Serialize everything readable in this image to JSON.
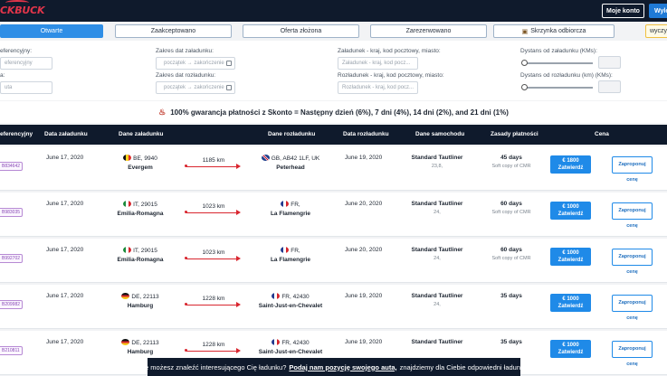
{
  "header": {
    "logo": "CKBUCK",
    "account_label": "Moje konto",
    "logout_label": "Wylo"
  },
  "tabs": [
    {
      "label": "Otwarte",
      "active": true
    },
    {
      "label": "Zaakceptowano",
      "active": false
    },
    {
      "label": "Oferta złożona",
      "active": false
    },
    {
      "label": "Zarezerwowano",
      "active": false
    },
    {
      "label": "Skrzynka odbiorcza",
      "active": false,
      "icon": "inbox-icon"
    },
    {
      "label": "wyczy",
      "active": false
    }
  ],
  "filters": {
    "ref_label": "eferencyjny:",
    "ref_placeholder": "eferencyjny",
    "ref2_label": "a:",
    "ref2_placeholder": "uta",
    "load_dates_label": "Zakres dat załadunku:",
    "load_dates_placeholder": "początek → zakończenie",
    "unload_dates_label": "Zakres dat rozładunku:",
    "unload_dates_placeholder": "początek → zakończenie",
    "load_place_label": "Załadunek - kraj, kod pocztowy, miasto:",
    "load_place_placeholder": "Załadunek - kraj, kod pocz...",
    "unload_place_label": "Rozładunek - kraj, kod pocztowy, miasto:",
    "unload_place_placeholder": "Rozładunek - kraj, kod pocz...",
    "dist_load_label": "Dystans od załadunku (KMs):",
    "dist_unload_label": "Dystans od rozładunku (km) (KMs):"
  },
  "banner": {
    "text": "100% gwarancja płatności z Skonto = Następny dzień (6%), 7 dni (4%), 14 dni (2%), and 21 dni (1%)"
  },
  "table": {
    "columns": [
      "eferencyjny",
      "Data załadunku",
      "Dane załadunku",
      "Dane rozładunku",
      "Data rozładunku",
      "Dane samochodu",
      "Zasady płatności",
      "Cena"
    ],
    "accept_label": "Zatwierdź",
    "offer_label": "Zaproponuj cenę",
    "rows": [
      {
        "ref": "B834642",
        "load_date": "June 17, 2020",
        "load_place": "BE, 9940",
        "load_city": "Evergem",
        "load_flag": "BE",
        "distance": "1185 km",
        "unload_place": "GB, AB42 1LF, UK",
        "unload_city": "Peterhead",
        "unload_flag": "GB",
        "unload_date": "June 19, 2020",
        "vehicle": "Standard Tautliner",
        "vehicle_sub": "23,8,",
        "payment": "45 days",
        "payment_sub": "Soft copy of CMR",
        "price": "€ 1800"
      },
      {
        "ref": "B983035",
        "load_date": "June 17, 2020",
        "load_place": "IT, 29015",
        "load_city": "Emilia-Romagna",
        "load_flag": "IT",
        "distance": "1023 km",
        "unload_place": "FR,",
        "unload_city": "La Flamengrie",
        "unload_flag": "FR",
        "unload_date": "June 20, 2020",
        "vehicle": "Standard Tautliner",
        "vehicle_sub": "24,",
        "payment": "60 days",
        "payment_sub": "Soft copy of CMR",
        "price": "€ 1000"
      },
      {
        "ref": "B992702",
        "load_date": "June 17, 2020",
        "load_place": "IT, 29015",
        "load_city": "Emilia-Romagna",
        "load_flag": "IT",
        "distance": "1023 km",
        "unload_place": "FR,",
        "unload_city": "La Flamengrie",
        "unload_flag": "FR",
        "unload_date": "June 20, 2020",
        "vehicle": "Standard Tautliner",
        "vehicle_sub": "24,",
        "payment": "60 days",
        "payment_sub": "Soft copy of CMR",
        "price": "€ 1000"
      },
      {
        "ref": "B209982",
        "load_date": "June 17, 2020",
        "load_place": "DE, 22113",
        "load_city": "Hamburg",
        "load_flag": "DE",
        "distance": "1228 km",
        "unload_place": "FR, 42430",
        "unload_city": "Saint-Just-en-Chevalet",
        "unload_flag": "FR",
        "unload_date": "June 19, 2020",
        "vehicle": "Standard Tautliner",
        "vehicle_sub": "24,",
        "payment": "35 days",
        "payment_sub": "",
        "price": "€ 1000"
      },
      {
        "ref": "B210811",
        "load_date": "June 17, 2020",
        "load_place": "DE, 22113",
        "load_city": "Hamburg",
        "load_flag": "DE",
        "distance": "1228 km",
        "unload_place": "FR, 42430",
        "unload_city": "Saint-Just-en-Chevalet",
        "unload_flag": "FR",
        "unload_date": "June 19, 2020",
        "vehicle": "Standard Tautliner",
        "vehicle_sub": "",
        "payment": "35 days",
        "payment_sub": "",
        "price": "€ 1000"
      }
    ]
  },
  "footer": {
    "prefix": "Nie możesz znaleźć interesującego Cię ładunku?",
    "link": "Podaj nam pozycję swojego auta,",
    "suffix": "znajdziemy dla Ciebie odpowiedni ładunek."
  }
}
